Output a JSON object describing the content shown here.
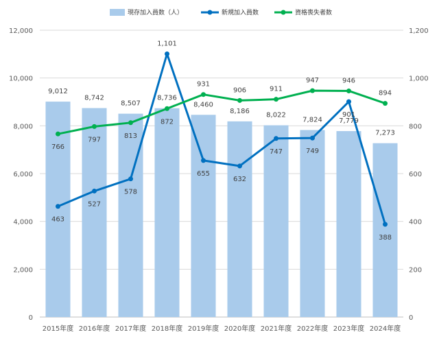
{
  "chart_data": {
    "type": "bar+line",
    "categories": [
      "2015年度",
      "2016年度",
      "2017年度",
      "2018年度",
      "2019年度",
      "2020年度",
      "2021年度",
      "2022年度",
      "2023年度",
      "2024年度"
    ],
    "series": [
      {
        "name": "現存加入員数（人）",
        "type": "bar",
        "axis": "left",
        "color": "#a9cbeb",
        "values": [
          9012,
          8742,
          8507,
          8736,
          8460,
          8186,
          8022,
          7824,
          7779,
          7273
        ],
        "labels": [
          "9,012",
          "8,742",
          "8,507",
          "8,736",
          "8,460",
          "8,186",
          "8,022",
          "7,824",
          "7,779",
          "7,273"
        ]
      },
      {
        "name": "新規加入員数",
        "type": "line",
        "axis": "right",
        "color": "#0070c0",
        "values": [
          463,
          527,
          578,
          1101,
          655,
          632,
          747,
          749,
          901,
          388
        ],
        "labels": [
          "463",
          "527",
          "578",
          "1,101",
          "655",
          "632",
          "747",
          "749",
          "901",
          "388"
        ]
      },
      {
        "name": "資格喪失者数",
        "type": "line",
        "axis": "right",
        "color": "#00b050",
        "values": [
          766,
          797,
          813,
          872,
          931,
          906,
          911,
          947,
          946,
          894
        ],
        "labels": [
          "766",
          "797",
          "813",
          "872",
          "931",
          "906",
          "911",
          "947",
          "946",
          "894"
        ]
      }
    ],
    "ylim_left": [
      0,
      12000
    ],
    "ylim_right": [
      0,
      1200
    ],
    "yticks_left": [
      "0",
      "2,000",
      "4,000",
      "6,000",
      "8,000",
      "10,000",
      "12,000"
    ],
    "yticks_right": [
      "0",
      "200",
      "400",
      "600",
      "800",
      "1,000",
      "1,200"
    ],
    "legend_position": "top",
    "grid": true
  }
}
